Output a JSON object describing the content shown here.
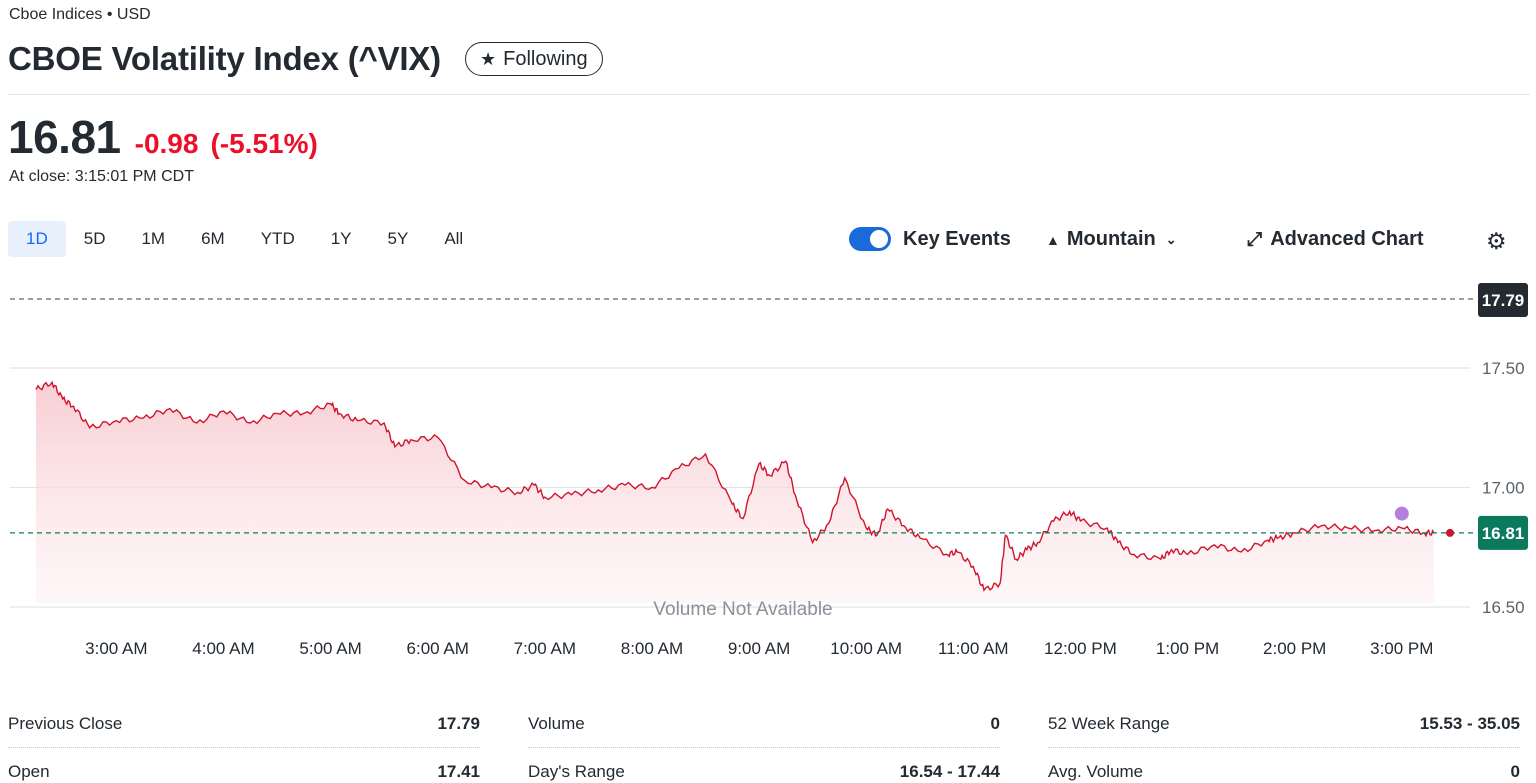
{
  "header": {
    "exchange": "Cboe Indices • USD",
    "title": "CBOE Volatility Index (^VIX)",
    "follow_label": "Following"
  },
  "quote": {
    "price": "16.81",
    "change": "-0.98",
    "change_pct": "(-5.51%)",
    "close_time": "At close: 3:15:01 PM CDT",
    "down_color": "#eb0f29"
  },
  "ranges": [
    "1D",
    "5D",
    "1M",
    "6M",
    "YTD",
    "1Y",
    "5Y",
    "All"
  ],
  "active_range": "1D",
  "controls": {
    "key_events_label": "Key Events",
    "key_events_on": true,
    "chart_type_label": "Mountain",
    "advanced_label": "Advanced Chart",
    "settings_icon": "gear-icon"
  },
  "chart_data": {
    "type": "area",
    "previous_close": 17.79,
    "previous_close_label": "17.79",
    "last": 16.81,
    "last_label": "16.81",
    "volume_note": "Volume Not Available",
    "ylim": [
      16.5,
      17.79
    ],
    "yticks": [
      17.5,
      17.0,
      16.5
    ],
    "ytick_labels": [
      "17.50",
      "17.00",
      "16.50"
    ],
    "x_labels": [
      "3:00 AM",
      "4:00 AM",
      "5:00 AM",
      "6:00 AM",
      "7:00 AM",
      "8:00 AM",
      "9:00 AM",
      "10:00 AM",
      "11:00 AM",
      "12:00 PM",
      "1:00 PM",
      "2:00 PM",
      "3:00 PM"
    ],
    "x_hours": [
      3,
      4,
      5,
      6,
      7,
      8,
      9,
      10,
      11,
      12,
      13,
      14,
      15
    ],
    "xlim": [
      2.25,
      15.45
    ],
    "line_color": "#d0142c",
    "prev_close_color": "#5b636a",
    "last_color": "#0b7a5c",
    "event_color": "#b57fe0",
    "event_time": 15.0,
    "event_value": 16.87,
    "series": [
      {
        "t": [
          2.25,
          2.4,
          2.5,
          2.6,
          2.75,
          3.0,
          3.25,
          3.5,
          3.75,
          4.0,
          4.25,
          4.5,
          4.75,
          5.0,
          5.08,
          5.25,
          5.5,
          5.6,
          5.75,
          6.0,
          6.25,
          6.5,
          6.75,
          6.9,
          7.0,
          7.25,
          7.5,
          7.75,
          8.0,
          8.25,
          8.5,
          8.75,
          8.85,
          9.0,
          9.1,
          9.25,
          9.35,
          9.5,
          9.65,
          9.8,
          10.0,
          10.1,
          10.2,
          10.35,
          10.5,
          10.75,
          10.85,
          11.0,
          11.1,
          11.25,
          11.3,
          11.4,
          11.5,
          11.6,
          11.75,
          11.9,
          12.0,
          12.25,
          12.35,
          12.5,
          12.75,
          12.85,
          13.0,
          13.25,
          13.5,
          13.75,
          13.85,
          14.0,
          14.25,
          14.5,
          14.75,
          15.0,
          15.2,
          15.3
        ],
        "v": [
          17.41,
          17.44,
          17.37,
          17.34,
          17.25,
          17.28,
          17.29,
          17.33,
          17.27,
          17.32,
          17.27,
          17.31,
          17.31,
          17.35,
          17.31,
          17.28,
          17.27,
          17.17,
          17.2,
          17.21,
          17.03,
          17.0,
          16.98,
          17.01,
          16.96,
          16.97,
          16.99,
          17.01,
          17.0,
          17.08,
          17.14,
          16.93,
          16.87,
          17.1,
          17.05,
          17.11,
          16.95,
          16.77,
          16.85,
          17.04,
          16.83,
          16.8,
          16.91,
          16.84,
          16.79,
          16.72,
          16.73,
          16.67,
          16.57,
          16.6,
          16.8,
          16.7,
          16.74,
          16.77,
          16.86,
          16.9,
          16.86,
          16.83,
          16.77,
          16.72,
          16.7,
          16.74,
          16.72,
          16.76,
          16.73,
          16.78,
          16.79,
          16.81,
          16.84,
          16.83,
          16.82,
          16.83,
          16.81,
          16.81
        ]
      }
    ]
  },
  "stats": [
    [
      {
        "label": "Previous Close",
        "value": "17.79"
      },
      {
        "label": "Open",
        "value": "17.41"
      }
    ],
    [
      {
        "label": "Volume",
        "value": "0"
      },
      {
        "label": "Day's Range",
        "value": "16.54 - 17.44"
      }
    ],
    [
      {
        "label": "52 Week Range",
        "value": "15.53 - 35.05"
      },
      {
        "label": "Avg. Volume",
        "value": "0"
      }
    ]
  ]
}
